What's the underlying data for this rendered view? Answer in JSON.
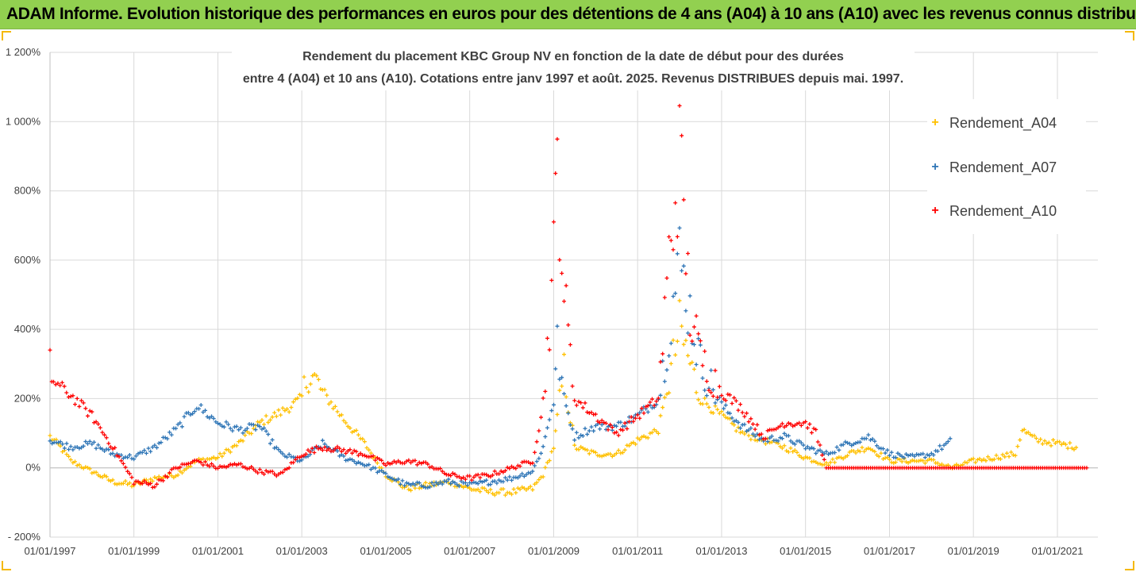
{
  "banner": "ADAM Informe. Evolution historique des performances en euros pour des détentions de 4 ans (A04) à 10 ans (A10) avec les revenus connus distribués",
  "colors": {
    "banner_bg": "#92d050",
    "frame": "#f5b800",
    "A04": "#ffc000",
    "A07": "#2e75b6",
    "A10": "#ff0000",
    "grid": "#d9d9d9",
    "axis_text": "#404040"
  },
  "chart_data": {
    "type": "scatter",
    "title_line1": "Rendement du placement KBC Group NV en fonction de la date de début pour des durées",
    "title_line2": "entre 4 (A04) et 10 ans (A10). Cotations entre janv 1997 et août. 2025. Revenus DISTRIBUES depuis mai. 1997.",
    "xlabel": "",
    "ylabel": "",
    "ylim": [
      -200,
      1200
    ],
    "xlim": [
      "1997-01-01",
      "2022-01-01"
    ],
    "y_ticks": [
      -200,
      0,
      200,
      400,
      600,
      800,
      1000,
      1200
    ],
    "y_tick_labels": [
      "- 200%",
      "0%",
      "200%",
      "400%",
      "600%",
      "800%",
      "1 000%",
      "1 200%"
    ],
    "x_tick_labels": [
      "01/01/1997",
      "01/01/1999",
      "01/01/2001",
      "01/01/2003",
      "01/01/2005",
      "01/01/2007",
      "01/01/2009",
      "01/01/2011",
      "01/01/2013",
      "01/01/2015",
      "01/01/2017",
      "01/01/2019",
      "01/01/2021"
    ],
    "grid": true,
    "legend_position": "right",
    "marker": "+",
    "series": [
      {
        "name": "Rendement_A04",
        "color": "#ffc000",
        "x": [
          "1997-01-01",
          "1997-04-01",
          "1997-07-01",
          "1998-01-01",
          "1998-07-01",
          "1999-01-01",
          "1999-07-01",
          "2000-01-01",
          "2000-07-01",
          "2001-01-01",
          "2001-07-01",
          "2002-01-01",
          "2002-07-01",
          "2003-01-01",
          "2003-03-01",
          "2003-07-01",
          "2004-01-01",
          "2004-07-01",
          "2005-01-01",
          "2005-07-01",
          "2006-01-01",
          "2006-07-01",
          "2007-01-01",
          "2007-07-01",
          "2008-01-01",
          "2008-07-01",
          "2008-10-01",
          "2009-01-01",
          "2009-02-01",
          "2009-04-01",
          "2009-07-01",
          "2010-01-01",
          "2010-07-01",
          "2011-01-01",
          "2011-07-01",
          "2011-10-01",
          "2012-01-01",
          "2012-04-01",
          "2012-07-01",
          "2013-01-01",
          "2013-07-01",
          "2014-01-01",
          "2014-07-01",
          "2015-01-01",
          "2015-07-01",
          "2016-01-01",
          "2016-07-01",
          "2017-01-01",
          "2017-07-01",
          "2018-01-01",
          "2018-07-01",
          "2019-01-01",
          "2019-07-01",
          "2020-01-01",
          "2020-03-01",
          "2020-07-01",
          "2021-01-01",
          "2021-07-01"
        ],
        "y": [
          90,
          60,
          20,
          -10,
          -40,
          -50,
          -30,
          -20,
          20,
          30,
          70,
          130,
          160,
          200,
          280,
          220,
          140,
          70,
          -20,
          -60,
          -50,
          -40,
          -60,
          -70,
          -70,
          -60,
          -20,
          60,
          140,
          280,
          60,
          40,
          40,
          80,
          110,
          250,
          400,
          300,
          200,
          150,
          100,
          80,
          60,
          30,
          10,
          40,
          60,
          20,
          20,
          20,
          0,
          20,
          30,
          40,
          110,
          80,
          70,
          60
        ]
      },
      {
        "name": "Rendement_A07",
        "color": "#2e75b6",
        "x": [
          "1997-01-01",
          "1997-07-01",
          "1998-01-01",
          "1998-07-01",
          "1999-01-01",
          "1999-07-01",
          "2000-01-01",
          "2000-07-01",
          "2001-01-01",
          "2001-07-01",
          "2002-01-01",
          "2002-07-01",
          "2003-01-01",
          "2003-07-01",
          "2004-01-01",
          "2004-07-01",
          "2005-01-01",
          "2005-07-01",
          "2006-01-01",
          "2006-07-01",
          "2007-01-01",
          "2007-07-01",
          "2008-01-01",
          "2008-07-01",
          "2008-10-01",
          "2009-01-01",
          "2009-02-01",
          "2009-04-01",
          "2009-07-01",
          "2010-01-01",
          "2010-07-01",
          "2011-01-01",
          "2011-07-01",
          "2011-10-01",
          "2012-01-01",
          "2012-04-01",
          "2012-07-01",
          "2013-01-01",
          "2013-07-01",
          "2014-01-01",
          "2014-07-01",
          "2015-01-01",
          "2015-07-01",
          "2016-01-01",
          "2016-07-01",
          "2017-01-01",
          "2017-07-01",
          "2018-01-01",
          "2018-07-01"
        ],
        "y": [
          80,
          60,
          70,
          40,
          30,
          60,
          110,
          180,
          130,
          110,
          120,
          40,
          20,
          70,
          30,
          10,
          -20,
          -50,
          -50,
          -40,
          -50,
          -40,
          -30,
          -10,
          60,
          200,
          350,
          200,
          90,
          120,
          120,
          150,
          200,
          400,
          600,
          450,
          300,
          180,
          120,
          80,
          90,
          60,
          40,
          70,
          90,
          40,
          30,
          40,
          80
        ]
      },
      {
        "name": "Rendement_A10",
        "color": "#ff0000",
        "x": [
          "1997-01-01",
          "1997-02-01",
          "1997-07-01",
          "1998-01-01",
          "1998-07-01",
          "1999-01-01",
          "1999-07-01",
          "2000-01-01",
          "2000-07-01",
          "2001-01-01",
          "2001-07-01",
          "2002-01-01",
          "2002-07-01",
          "2003-01-01",
          "2003-07-01",
          "2004-01-01",
          "2004-07-01",
          "2005-01-01",
          "2005-07-01",
          "2006-01-01",
          "2006-07-01",
          "2007-01-01",
          "2007-07-01",
          "2008-01-01",
          "2008-07-01",
          "2008-10-01",
          "2009-01-01",
          "2009-02-01",
          "2009-04-01",
          "2009-07-01",
          "2010-01-01",
          "2010-07-01",
          "2011-01-01",
          "2011-07-01",
          "2011-10-01",
          "2012-01-01",
          "2012-04-01",
          "2012-07-01",
          "2013-01-01",
          "2013-07-01",
          "2014-01-01",
          "2014-07-01",
          "2015-01-01",
          "2015-04-01",
          "2015-07-01",
          "2016-01-01",
          "2017-01-01",
          "2018-01-01",
          "2019-01-01",
          "2020-01-01",
          "2021-01-01",
          "2021-10-01"
        ],
        "y": [
          290,
          250,
          210,
          150,
          60,
          -40,
          -50,
          0,
          20,
          0,
          10,
          -10,
          -20,
          40,
          60,
          50,
          40,
          10,
          20,
          10,
          -20,
          -30,
          -20,
          0,
          20,
          180,
          600,
          900,
          500,
          200,
          150,
          100,
          150,
          200,
          600,
          900,
          450,
          320,
          220,
          170,
          90,
          130,
          130,
          100,
          0,
          0,
          0,
          0,
          0,
          0,
          0,
          0
        ]
      }
    ]
  }
}
